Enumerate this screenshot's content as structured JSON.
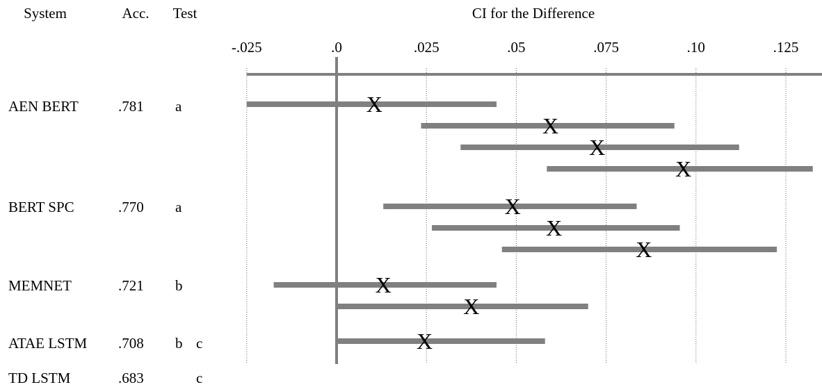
{
  "headers": {
    "system": "System",
    "accuracy": "Acc.",
    "test": "Test",
    "ci": "CI for the Difference"
  },
  "systems": [
    {
      "name": "AEN BERT",
      "acc": ".781",
      "test": [
        "a",
        ""
      ]
    },
    {
      "name": "BERT SPC",
      "acc": ".770",
      "test": [
        "a",
        ""
      ]
    },
    {
      "name": "MEMNET",
      "acc": ".721",
      "test": [
        "b",
        ""
      ]
    },
    {
      "name": "ATAE LSTM",
      "acc": ".708",
      "test": [
        "b",
        "c"
      ]
    },
    {
      "name": "TD LSTM",
      "acc": ".683",
      "test": [
        "",
        "c"
      ]
    }
  ],
  "chart_data": {
    "type": "interval",
    "title": "CI for the Difference",
    "xlim": [
      -0.025,
      0.134
    ],
    "ticks": [
      -0.025,
      0.0,
      0.025,
      0.05,
      0.075,
      0.1,
      0.125
    ],
    "tick_labels": [
      "-.025",
      ".0",
      ".025",
      ".05",
      ".075",
      ".10",
      ".125"
    ],
    "grid": true,
    "point_marker": "X",
    "intervals": [
      {
        "group": 0,
        "low": -0.025,
        "high": 0.0445,
        "point": 0.0105
      },
      {
        "group": 0,
        "low": 0.0235,
        "high": 0.094,
        "point": 0.0595
      },
      {
        "group": 0,
        "low": 0.0345,
        "high": 0.112,
        "point": 0.0725
      },
      {
        "group": 0,
        "low": 0.0585,
        "high": 0.1325,
        "point": 0.0965
      },
      {
        "group": 1,
        "low": 0.013,
        "high": 0.0835,
        "point": 0.049
      },
      {
        "group": 1,
        "low": 0.0265,
        "high": 0.0955,
        "point": 0.0605
      },
      {
        "group": 1,
        "low": 0.046,
        "high": 0.1225,
        "point": 0.0855
      },
      {
        "group": 2,
        "low": -0.0175,
        "high": 0.0445,
        "point": 0.013
      },
      {
        "group": 2,
        "low": 0.0,
        "high": 0.07,
        "point": 0.0375
      },
      {
        "group": 3,
        "low": 0.0,
        "high": 0.058,
        "point": 0.0245
      }
    ]
  }
}
